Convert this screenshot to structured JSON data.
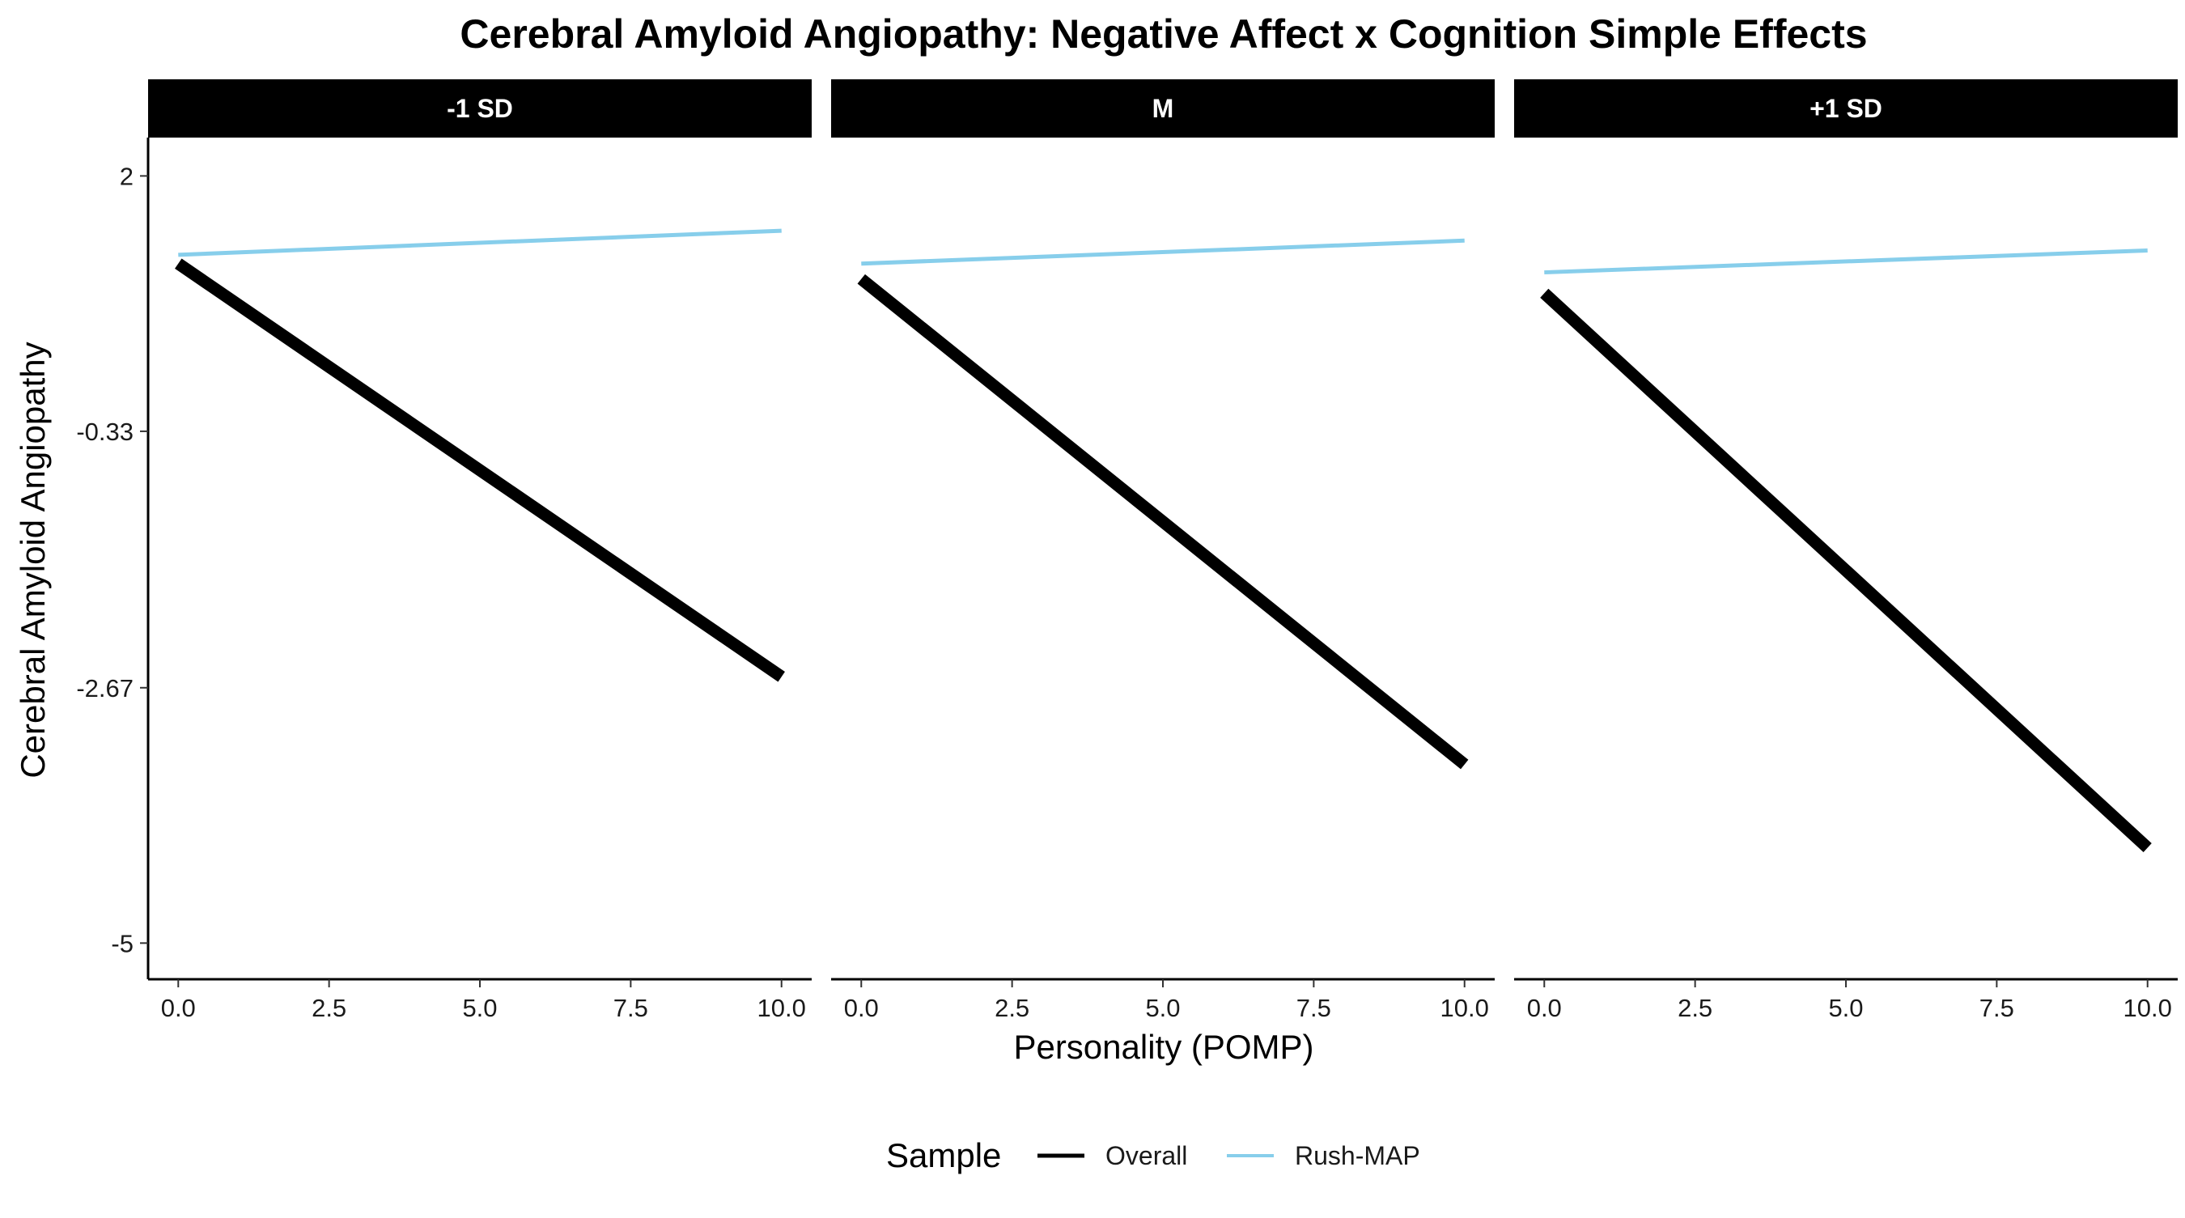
{
  "chart_data": {
    "type": "line",
    "title": "Cerebral Amyloid Angiopathy: Negative Affect x Cognition Simple Effects",
    "xlabel": "Personality (POMP)",
    "ylabel": "Cerebral Amyloid Angiopathy",
    "xlim": [
      -0.5,
      10.5
    ],
    "ylim": [
      -5.33,
      2.35
    ],
    "x_ticks": [
      0,
      2.5,
      5,
      7.5,
      10
    ],
    "x_tick_labels": [
      "0.0",
      "2.5",
      "5.0",
      "7.5",
      "10.0"
    ],
    "y_ticks": [
      2,
      -0.33,
      -2.67,
      -5
    ],
    "y_tick_labels": [
      "2",
      "-0.33",
      "-2.67",
      "-5"
    ],
    "legend": {
      "title": "Sample",
      "position": "bottom",
      "entries": [
        "Overall",
        "Rush-MAP"
      ]
    },
    "colors": {
      "Overall": "#000000",
      "Rush-MAP": "#87CEEB"
    },
    "panels": [
      {
        "label": "-1 SD",
        "series": [
          {
            "name": "Overall",
            "x": [
              0,
              10
            ],
            "y": [
              1.2,
              -2.57
            ]
          },
          {
            "name": "Rush-MAP",
            "x": [
              0,
              10
            ],
            "y": [
              1.28,
              1.5
            ]
          }
        ]
      },
      {
        "label": "M",
        "series": [
          {
            "name": "Overall",
            "x": [
              0,
              10
            ],
            "y": [
              1.06,
              -3.37
            ]
          },
          {
            "name": "Rush-MAP",
            "x": [
              0,
              10
            ],
            "y": [
              1.2,
              1.41
            ]
          }
        ]
      },
      {
        "label": "+1 SD",
        "series": [
          {
            "name": "Overall",
            "x": [
              0,
              10
            ],
            "y": [
              0.93,
              -4.13
            ]
          },
          {
            "name": "Rush-MAP",
            "x": [
              0,
              10
            ],
            "y": [
              1.12,
              1.32
            ]
          }
        ]
      }
    ]
  }
}
